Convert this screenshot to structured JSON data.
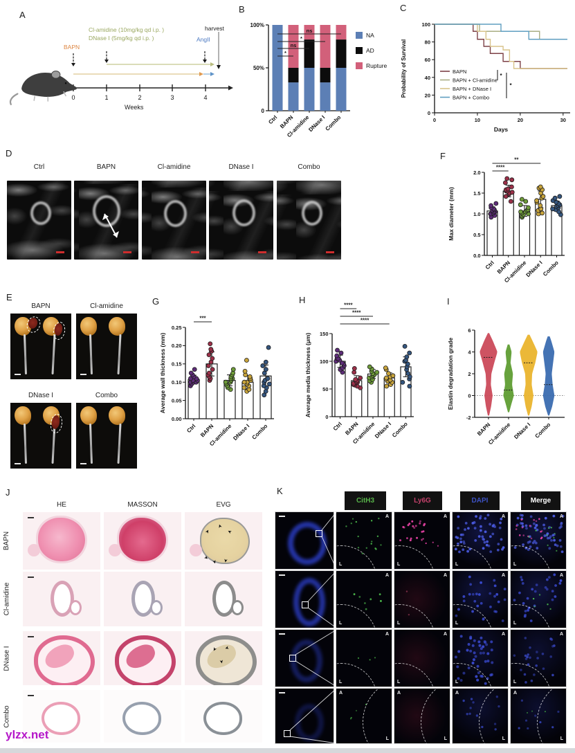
{
  "panels": {
    "a": {
      "label": "A",
      "drug1": "Cl-amidine (10mg/kg qd i.p. )",
      "drug2": "DNase I (5mg/kg qd i.p. )",
      "bapn": "BAPN",
      "angii": "AngII",
      "harvest": "harvest",
      "weeks_label": "Weeks",
      "week_ticks": [
        "0",
        "1",
        "2",
        "3",
        "4"
      ],
      "colors": {
        "drug": "#9aa860",
        "bapn": "#dd8540",
        "angii": "#4a78c2"
      }
    },
    "b": {
      "label": "B"
    },
    "c": {
      "label": "C"
    },
    "d": {
      "label": "D",
      "titles": [
        "Ctrl",
        "BAPN",
        "Cl-amidine",
        "DNase I",
        "Combo"
      ]
    },
    "e": {
      "label": "E",
      "titles": [
        "BAPN",
        "Cl-amidine",
        "DNase I",
        "Combo"
      ]
    },
    "f": {
      "label": "F"
    },
    "g": {
      "label": "G"
    },
    "h": {
      "label": "H"
    },
    "i": {
      "label": "I"
    },
    "j": {
      "label": "J",
      "columns": [
        "HE",
        "MASSON",
        "EVG"
      ],
      "rows": [
        "BAPN",
        "Cl-amidine",
        "DNase I",
        "Combo"
      ]
    },
    "k": {
      "label": "K",
      "channels": [
        "CitH3",
        "Ly6G",
        "DAPI",
        "Merge"
      ],
      "channel_colors": [
        "#58b44a",
        "#c2416a",
        "#3d52c4",
        "#ffffff"
      ],
      "corner_a": "A",
      "corner_l": "L"
    }
  },
  "watermark": "ylzx.net",
  "chart_data": [
    {
      "id": "B",
      "type": "stacked_bar_percent",
      "categories": [
        "Ctrl",
        "BAPN",
        "Cl-amidine",
        "DNase I",
        "Combo"
      ],
      "series": [
        {
          "name": "NA",
          "color": "#5c7fb5",
          "values": [
            100,
            33,
            50,
            33,
            50
          ]
        },
        {
          "name": "AD",
          "color": "#0c0c0c",
          "values": [
            0,
            17,
            33,
            17,
            33
          ]
        },
        {
          "name": "Rupture",
          "color": "#d2607a",
          "values": [
            0,
            50,
            17,
            50,
            17
          ]
        }
      ],
      "ytick_labels": [
        "100%",
        "50%",
        "0"
      ],
      "sig": [
        {
          "from": 0,
          "to": 4,
          "label": "ns"
        },
        {
          "from": 0,
          "to": 3,
          "label": "*"
        },
        {
          "from": 0,
          "to": 2,
          "label": "ns"
        },
        {
          "from": 0,
          "to": 1,
          "label": "*"
        }
      ]
    },
    {
      "id": "C",
      "type": "step_line",
      "xlabel": "Days",
      "ylabel": "Probability of Survival",
      "xlim": [
        0,
        31
      ],
      "ylim": [
        0,
        100
      ],
      "xticks": [
        0,
        10,
        20,
        30
      ],
      "yticks": [
        0,
        20,
        40,
        60,
        80,
        100
      ],
      "series": [
        {
          "name": "BAPN",
          "color": "#7c4046",
          "points": [
            [
              0,
              100
            ],
            [
              9,
              100
            ],
            [
              9,
              92
            ],
            [
              10,
              92
            ],
            [
              10,
              83
            ],
            [
              11.5,
              83
            ],
            [
              11.5,
              75
            ],
            [
              13,
              75
            ],
            [
              13,
              67
            ],
            [
              16,
              67
            ],
            [
              16,
              58
            ],
            [
              20,
              58
            ],
            [
              20,
              50
            ],
            [
              31,
              50
            ]
          ]
        },
        {
          "name": "BAPN + Cl-amidine",
          "color": "#a9ad83",
          "points": [
            [
              0,
              100
            ],
            [
              10.5,
              100
            ],
            [
              10.5,
              92
            ],
            [
              24.5,
              92
            ],
            [
              24.5,
              83
            ],
            [
              31,
              83
            ]
          ]
        },
        {
          "name": "BAPN + DNase I",
          "color": "#d8c38a",
          "points": [
            [
              0,
              100
            ],
            [
              10,
              100
            ],
            [
              10,
              92
            ],
            [
              12,
              92
            ],
            [
              12,
              83
            ],
            [
              13,
              83
            ],
            [
              13,
              75
            ],
            [
              16,
              75
            ],
            [
              16,
              71
            ],
            [
              17.5,
              71
            ],
            [
              17.5,
              58
            ],
            [
              18.5,
              58
            ],
            [
              18.5,
              50
            ],
            [
              31,
              50
            ]
          ]
        },
        {
          "name": "BAPN + Combo",
          "color": "#5f9ec0",
          "points": [
            [
              0,
              100
            ],
            [
              15.5,
              100
            ],
            [
              15.5,
              92
            ],
            [
              22,
              92
            ],
            [
              22,
              83
            ],
            [
              31,
              83
            ]
          ]
        }
      ],
      "sig": [
        "*",
        "*"
      ]
    },
    {
      "id": "F",
      "type": "dot_bar",
      "ylabel": "Max diameter (mm)",
      "ylim": [
        0,
        2
      ],
      "yticks": [
        0,
        0.5,
        1,
        1.5,
        2
      ],
      "ytick_labels": [
        "0.0",
        "0.5",
        "1.0",
        "1.5",
        "2.0"
      ],
      "categories": [
        "Ctrl",
        "BAPN",
        "Cl-amidine",
        "DNase I",
        "Combo"
      ],
      "colors": [
        "#5e2d79",
        "#9c3049",
        "#6f9c3a",
        "#c8a43c",
        "#35567f"
      ],
      "means": [
        1.07,
        1.55,
        1.07,
        1.35,
        1.2
      ],
      "sd": [
        0.1,
        0.14,
        0.13,
        0.2,
        0.11
      ],
      "points": [
        [
          0.92,
          0.96,
          1.0,
          1.0,
          1.02,
          1.05,
          1.05,
          1.08,
          1.1,
          1.12,
          1.15,
          1.2,
          1.25
        ],
        [
          1.3,
          1.42,
          1.48,
          1.5,
          1.52,
          1.55,
          1.55,
          1.58,
          1.6,
          1.65,
          1.75,
          1.82,
          1.85
        ],
        [
          0.92,
          0.95,
          0.98,
          1.0,
          1.02,
          1.05,
          1.05,
          1.08,
          1.1,
          1.15,
          1.22,
          1.3,
          1.35
        ],
        [
          1.0,
          1.02,
          1.08,
          1.12,
          1.2,
          1.28,
          1.32,
          1.38,
          1.42,
          1.5,
          1.58,
          1.62,
          1.65
        ],
        [
          0.98,
          1.05,
          1.1,
          1.12,
          1.15,
          1.18,
          1.2,
          1.22,
          1.25,
          1.28,
          1.32,
          1.38,
          1.42
        ]
      ],
      "sig": [
        {
          "from": 0,
          "to": 1,
          "label": "****"
        },
        {
          "from": 0,
          "to": 3,
          "label": "**"
        }
      ]
    },
    {
      "id": "G",
      "type": "dot_bar",
      "ylabel": "Average wall thickness (mm)",
      "ylim": [
        0,
        0.25
      ],
      "yticks": [
        0,
        0.05,
        0.1,
        0.15,
        0.2,
        0.25
      ],
      "ytick_labels": [
        "0.00",
        "0.05",
        "0.10",
        "0.15",
        "0.20",
        "0.25"
      ],
      "categories": [
        "Ctrl",
        "BAPN",
        "Cl-amidine",
        "DNase I",
        "Combo"
      ],
      "colors": [
        "#5e2d79",
        "#9c3049",
        "#6f9c3a",
        "#c8a43c",
        "#35567f"
      ],
      "means": [
        0.107,
        0.15,
        0.105,
        0.1,
        0.117
      ],
      "sd": [
        0.012,
        0.033,
        0.015,
        0.018,
        0.03
      ],
      "points": [
        [
          0.09,
          0.095,
          0.1,
          0.1,
          0.1,
          0.105,
          0.105,
          0.11,
          0.11,
          0.115,
          0.12,
          0.125,
          0.135
        ],
        [
          0.105,
          0.11,
          0.115,
          0.12,
          0.125,
          0.135,
          0.145,
          0.155,
          0.165,
          0.175,
          0.185,
          0.19,
          0.205
        ],
        [
          0.08,
          0.085,
          0.09,
          0.095,
          0.1,
          0.1,
          0.105,
          0.11,
          0.11,
          0.115,
          0.12,
          0.125,
          0.135
        ],
        [
          0.075,
          0.08,
          0.085,
          0.09,
          0.095,
          0.1,
          0.1,
          0.105,
          0.11,
          0.115,
          0.12,
          0.13,
          0.16
        ],
        [
          0.065,
          0.075,
          0.085,
          0.09,
          0.095,
          0.1,
          0.105,
          0.11,
          0.125,
          0.135,
          0.145,
          0.155,
          0.195
        ]
      ],
      "sig": [
        {
          "from": 0,
          "to": 1,
          "label": "***"
        }
      ]
    },
    {
      "id": "H",
      "type": "dot_bar",
      "ylabel": "Average media thickness (μm)",
      "ylim": [
        0,
        150
      ],
      "yticks": [
        0,
        50,
        100,
        150
      ],
      "ytick_labels": [
        "0",
        "50",
        "100",
        "150"
      ],
      "categories": [
        "Ctrl",
        "BAPN",
        "Cl-amidine",
        "DNase I",
        "Combo"
      ],
      "colors": [
        "#5e2d79",
        "#9c3049",
        "#6f9c3a",
        "#c8a43c",
        "#35567f"
      ],
      "means": [
        100,
        65,
        77,
        70,
        90
      ],
      "sd": [
        11,
        9,
        8,
        9,
        18
      ],
      "points": [
        [
          80,
          85,
          88,
          92,
          95,
          97,
          100,
          100,
          102,
          105,
          105,
          110,
          115,
          120
        ],
        [
          52,
          55,
          57,
          58,
          60,
          62,
          63,
          65,
          67,
          70,
          80,
          87
        ],
        [
          62,
          65,
          67,
          70,
          72,
          74,
          76,
          78,
          80,
          82,
          86,
          90
        ],
        [
          55,
          58,
          62,
          64,
          66,
          68,
          70,
          72,
          74,
          78,
          85,
          88
        ],
        [
          55,
          62,
          68,
          72,
          78,
          85,
          90,
          95,
          100,
          102,
          108,
          115,
          127
        ]
      ],
      "sig": [
        {
          "from": 0,
          "to": 3,
          "label": "****"
        },
        {
          "from": 0,
          "to": 2,
          "label": "****"
        },
        {
          "from": 0,
          "to": 1,
          "label": "****"
        }
      ]
    },
    {
      "id": "I",
      "type": "violin",
      "ylabel": "Elastin degradation grade",
      "ylim": [
        -2,
        6
      ],
      "yticks": [
        -2,
        0,
        2,
        4,
        6
      ],
      "ytick_labels": [
        "-2",
        "0",
        "2",
        "4",
        "6"
      ],
      "categories": [
        "BAPN",
        "Cl-amidine",
        "DNase I",
        "Combo"
      ],
      "colors": [
        "#cc4a5a",
        "#5f9e33",
        "#eab52e",
        "#3a6cb0"
      ],
      "medians": [
        3.5,
        0.5,
        3,
        1
      ],
      "baseline": 0,
      "profiles": [
        [
          [
            -1.8,
            0.04
          ],
          [
            -1,
            0.25
          ],
          [
            0,
            0.42
          ],
          [
            1,
            0.22
          ],
          [
            2,
            0.28
          ],
          [
            3,
            0.6
          ],
          [
            4,
            0.95
          ],
          [
            5,
            0.45
          ],
          [
            5.7,
            0.05
          ]
        ],
        [
          [
            -1.5,
            0.04
          ],
          [
            -0.7,
            0.3
          ],
          [
            0,
            0.55
          ],
          [
            1,
            0.35
          ],
          [
            2,
            0.45
          ],
          [
            3,
            0.18
          ],
          [
            4,
            0.3
          ],
          [
            4.7,
            0.05
          ]
        ],
        [
          [
            -1.8,
            0.04
          ],
          [
            -1,
            0.3
          ],
          [
            0,
            0.5
          ],
          [
            1,
            0.3
          ],
          [
            2,
            0.35
          ],
          [
            3,
            0.7
          ],
          [
            4,
            0.95
          ],
          [
            5,
            0.4
          ],
          [
            5.6,
            0.05
          ]
        ],
        [
          [
            -1.8,
            0.04
          ],
          [
            -1,
            0.35
          ],
          [
            0,
            0.6
          ],
          [
            1,
            0.4
          ],
          [
            2,
            0.3
          ],
          [
            3,
            0.45
          ],
          [
            4,
            0.6
          ],
          [
            5,
            0.25
          ],
          [
            5.5,
            0.04
          ]
        ]
      ]
    }
  ]
}
